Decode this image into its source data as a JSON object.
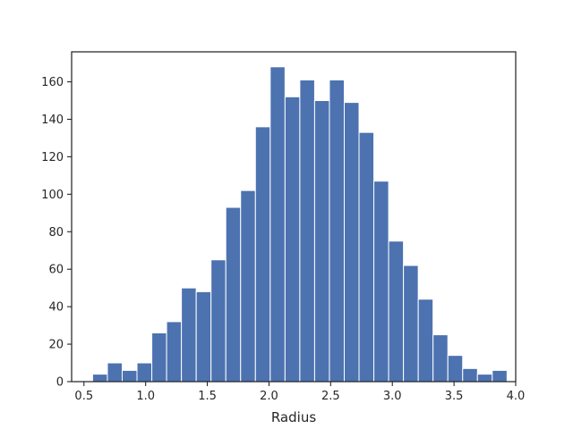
{
  "chart_data": {
    "type": "bar",
    "subtype": "histogram",
    "title": "",
    "xlabel": "Radius",
    "ylabel": "",
    "xlim": [
      0.4,
      4.0
    ],
    "ylim": [
      0,
      176
    ],
    "xticks": [
      0.5,
      1.0,
      1.5,
      2.0,
      2.5,
      3.0,
      3.5,
      4.0
    ],
    "xtick_labels": [
      "0.5",
      "1.0",
      "1.5",
      "2.0",
      "2.5",
      "3.0",
      "3.5",
      "4.0"
    ],
    "yticks": [
      0,
      20,
      40,
      60,
      80,
      100,
      120,
      140,
      160
    ],
    "ytick_labels": [
      "0",
      "20",
      "40",
      "60",
      "80",
      "100",
      "120",
      "140",
      "160"
    ],
    "grid": false,
    "bar_color": "#4c72b0",
    "bins": [
      {
        "x0": 0.57,
        "x1": 0.69,
        "value": 4
      },
      {
        "x0": 0.69,
        "x1": 0.81,
        "value": 10
      },
      {
        "x0": 0.81,
        "x1": 0.93,
        "value": 6
      },
      {
        "x0": 0.93,
        "x1": 1.05,
        "value": 10
      },
      {
        "x0": 1.05,
        "x1": 1.17,
        "value": 26
      },
      {
        "x0": 1.17,
        "x1": 1.29,
        "value": 32
      },
      {
        "x0": 1.29,
        "x1": 1.41,
        "value": 50
      },
      {
        "x0": 1.41,
        "x1": 1.53,
        "value": 48
      },
      {
        "x0": 1.53,
        "x1": 1.65,
        "value": 65
      },
      {
        "x0": 1.65,
        "x1": 1.77,
        "value": 93
      },
      {
        "x0": 1.77,
        "x1": 1.89,
        "value": 102
      },
      {
        "x0": 1.89,
        "x1": 2.01,
        "value": 136
      },
      {
        "x0": 2.01,
        "x1": 2.13,
        "value": 168
      },
      {
        "x0": 2.13,
        "x1": 2.25,
        "value": 152
      },
      {
        "x0": 2.25,
        "x1": 2.37,
        "value": 161
      },
      {
        "x0": 2.37,
        "x1": 2.49,
        "value": 150
      },
      {
        "x0": 2.49,
        "x1": 2.61,
        "value": 161
      },
      {
        "x0": 2.61,
        "x1": 2.73,
        "value": 149
      },
      {
        "x0": 2.73,
        "x1": 2.85,
        "value": 133
      },
      {
        "x0": 2.85,
        "x1": 2.97,
        "value": 107
      },
      {
        "x0": 2.97,
        "x1": 3.09,
        "value": 75
      },
      {
        "x0": 3.09,
        "x1": 3.21,
        "value": 62
      },
      {
        "x0": 3.21,
        "x1": 3.33,
        "value": 44
      },
      {
        "x0": 3.33,
        "x1": 3.45,
        "value": 25
      },
      {
        "x0": 3.45,
        "x1": 3.57,
        "value": 14
      },
      {
        "x0": 3.57,
        "x1": 3.69,
        "value": 7
      },
      {
        "x0": 3.69,
        "x1": 3.81,
        "value": 4
      },
      {
        "x0": 3.81,
        "x1": 3.93,
        "value": 6
      }
    ]
  }
}
